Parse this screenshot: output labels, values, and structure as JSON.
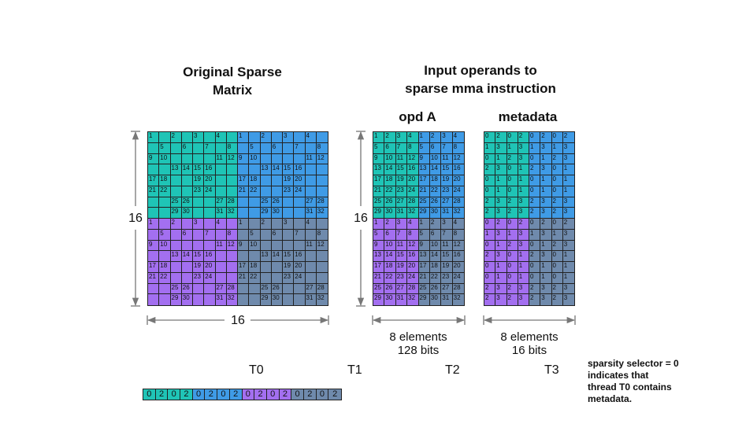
{
  "titles": {
    "original": "Original Sparse\nMatrix",
    "inputs": "Input operands to\nsparse mma instruction",
    "opdA": "opd A",
    "metadata": "metadata"
  },
  "dims": {
    "rows": "16",
    "cols": "16",
    "opdRows": "16"
  },
  "opdA_label": "8 elements\n128 bits",
  "meta_label": "8 elements\n16 bits",
  "threads": [
    "T0",
    "T1",
    "T2",
    "T3"
  ],
  "note": "sparsity selector = 0\nindicates that\nthread T0 contains\nmetadata.",
  "colors": {
    "teal": "#1fc4b6",
    "blue": "#3f9be6",
    "purple": "#a36ff0",
    "slate": "#6f8aac"
  },
  "sparse_rows": [
    [
      "1",
      "",
      "2",
      "",
      "3",
      "",
      "4",
      "",
      "1",
      "",
      "2",
      "",
      "3",
      "",
      "4",
      ""
    ],
    [
      "",
      "5",
      "",
      "6",
      "",
      "7",
      "",
      "8",
      "",
      "5",
      "",
      "6",
      "",
      "7",
      "",
      "8"
    ],
    [
      "9",
      "10",
      "",
      "",
      "",
      "",
      "11",
      "12",
      "9",
      "10",
      "",
      "",
      "",
      "",
      "11",
      "12"
    ],
    [
      "",
      "",
      "13",
      "14",
      "15",
      "16",
      "",
      "",
      "",
      "",
      "13",
      "14",
      "15",
      "16",
      "",
      ""
    ],
    [
      "17",
      "18",
      "",
      "",
      "19",
      "20",
      "",
      "",
      "17",
      "18",
      "",
      "",
      "19",
      "20",
      "",
      ""
    ],
    [
      "21",
      "22",
      "",
      "",
      "23",
      "24",
      "",
      "",
      "21",
      "22",
      "",
      "",
      "23",
      "24",
      "",
      ""
    ],
    [
      "",
      "",
      "25",
      "26",
      "",
      "",
      "27",
      "28",
      "",
      "",
      "25",
      "26",
      "",
      "",
      "27",
      "28"
    ],
    [
      "",
      "",
      "29",
      "30",
      "",
      "",
      "31",
      "32",
      "",
      "",
      "29",
      "30",
      "",
      "",
      "31",
      "32"
    ],
    [
      "1",
      "",
      "2",
      "",
      "3",
      "",
      "4",
      "",
      "1",
      "",
      "2",
      "",
      "3",
      "",
      "4",
      ""
    ],
    [
      "",
      "5",
      "",
      "6",
      "",
      "7",
      "",
      "8",
      "",
      "5",
      "",
      "6",
      "",
      "7",
      "",
      "8"
    ],
    [
      "9",
      "10",
      "",
      "",
      "",
      "",
      "11",
      "12",
      "9",
      "10",
      "",
      "",
      "",
      "",
      "11",
      "12"
    ],
    [
      "",
      "",
      "13",
      "14",
      "15",
      "16",
      "",
      "",
      "",
      "",
      "13",
      "14",
      "15",
      "16",
      "",
      ""
    ],
    [
      "17",
      "18",
      "",
      "",
      "19",
      "20",
      "",
      "",
      "17",
      "18",
      "",
      "",
      "19",
      "20",
      "",
      ""
    ],
    [
      "21",
      "22",
      "",
      "",
      "23",
      "24",
      "",
      "",
      "21",
      "22",
      "",
      "",
      "23",
      "24",
      "",
      ""
    ],
    [
      "",
      "",
      "25",
      "26",
      "",
      "",
      "27",
      "28",
      "",
      "",
      "25",
      "26",
      "",
      "",
      "27",
      "28"
    ],
    [
      "",
      "",
      "29",
      "30",
      "",
      "",
      "31",
      "32",
      "",
      "",
      "29",
      "30",
      "",
      "",
      "31",
      "32"
    ]
  ],
  "opdA_rows": [
    [
      "1",
      "2",
      "3",
      "4",
      "1",
      "2",
      "3",
      "4"
    ],
    [
      "5",
      "6",
      "7",
      "8",
      "5",
      "6",
      "7",
      "8"
    ],
    [
      "9",
      "10",
      "11",
      "12",
      "9",
      "10",
      "11",
      "12"
    ],
    [
      "13",
      "14",
      "15",
      "16",
      "13",
      "14",
      "15",
      "16"
    ],
    [
      "17",
      "18",
      "19",
      "20",
      "17",
      "18",
      "19",
      "20"
    ],
    [
      "21",
      "22",
      "23",
      "24",
      "21",
      "22",
      "23",
      "24"
    ],
    [
      "25",
      "26",
      "27",
      "28",
      "25",
      "26",
      "27",
      "28"
    ],
    [
      "29",
      "30",
      "31",
      "32",
      "29",
      "30",
      "31",
      "32"
    ],
    [
      "1",
      "2",
      "3",
      "4",
      "1",
      "2",
      "3",
      "4"
    ],
    [
      "5",
      "6",
      "7",
      "8",
      "5",
      "6",
      "7",
      "8"
    ],
    [
      "9",
      "10",
      "11",
      "12",
      "9",
      "10",
      "11",
      "12"
    ],
    [
      "13",
      "14",
      "15",
      "16",
      "13",
      "14",
      "15",
      "16"
    ],
    [
      "17",
      "18",
      "19",
      "20",
      "17",
      "18",
      "19",
      "20"
    ],
    [
      "21",
      "22",
      "23",
      "24",
      "21",
      "22",
      "23",
      "24"
    ],
    [
      "25",
      "26",
      "27",
      "28",
      "25",
      "26",
      "27",
      "28"
    ],
    [
      "29",
      "30",
      "31",
      "32",
      "29",
      "30",
      "31",
      "32"
    ]
  ],
  "meta_rows": [
    [
      "0",
      "2",
      "0",
      "2",
      "0",
      "2",
      "0",
      "2"
    ],
    [
      "1",
      "3",
      "1",
      "3",
      "1",
      "3",
      "1",
      "3"
    ],
    [
      "0",
      "1",
      "2",
      "3",
      "0",
      "1",
      "2",
      "3"
    ],
    [
      "2",
      "3",
      "0",
      "1",
      "2",
      "3",
      "0",
      "1"
    ],
    [
      "0",
      "1",
      "0",
      "1",
      "0",
      "1",
      "0",
      "1"
    ],
    [
      "0",
      "1",
      "0",
      "1",
      "0",
      "1",
      "0",
      "1"
    ],
    [
      "2",
      "3",
      "2",
      "3",
      "2",
      "3",
      "2",
      "3"
    ],
    [
      "2",
      "3",
      "2",
      "3",
      "2",
      "3",
      "2",
      "3"
    ],
    [
      "0",
      "2",
      "0",
      "2",
      "0",
      "2",
      "0",
      "2"
    ],
    [
      "1",
      "3",
      "1",
      "3",
      "1",
      "3",
      "1",
      "3"
    ],
    [
      "0",
      "1",
      "2",
      "3",
      "0",
      "1",
      "2",
      "3"
    ],
    [
      "2",
      "3",
      "0",
      "1",
      "2",
      "3",
      "0",
      "1"
    ],
    [
      "0",
      "1",
      "0",
      "1",
      "0",
      "1",
      "0",
      "1"
    ],
    [
      "0",
      "1",
      "0",
      "1",
      "0",
      "1",
      "0",
      "1"
    ],
    [
      "2",
      "3",
      "2",
      "3",
      "2",
      "3",
      "2",
      "3"
    ],
    [
      "2",
      "3",
      "2",
      "3",
      "2",
      "3",
      "2",
      "3"
    ]
  ],
  "selector_row": [
    "0",
    "2",
    "0",
    "2",
    "0",
    "2",
    "0",
    "2",
    "0",
    "2",
    "0",
    "2",
    "0",
    "2",
    "0",
    "2"
  ]
}
